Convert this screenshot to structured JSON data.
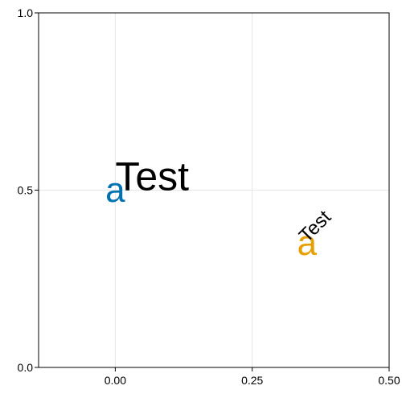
{
  "chart_data": {
    "type": "scatter",
    "title": "",
    "xlabel": "",
    "ylabel": "",
    "xlim": [
      -0.14,
      0.5
    ],
    "ylim": [
      0,
      1
    ],
    "x_ticks": [
      {
        "value": 0.0,
        "label": "0.00"
      },
      {
        "value": 0.25,
        "label": "0.25"
      },
      {
        "value": 0.5,
        "label": "0.50"
      }
    ],
    "y_ticks": [
      {
        "value": 0.0,
        "label": "0.0"
      },
      {
        "value": 0.5,
        "label": "0.5"
      },
      {
        "value": 1.0,
        "label": "1.0"
      }
    ],
    "grid": true,
    "points": [
      {
        "x": 0.0,
        "y": 0.5,
        "marker": "a",
        "color": "#0072b2"
      },
      {
        "x": 0.35,
        "y": 0.35,
        "marker": "a",
        "color": "#e69f00"
      }
    ],
    "annotations": [
      {
        "text": "Test",
        "x": 0.0,
        "y": 0.5,
        "rotation_deg": 0,
        "color": "#000000"
      },
      {
        "text": "Test",
        "x": 0.35,
        "y": 0.35,
        "rotation_deg": -45,
        "color": "#000000"
      }
    ]
  }
}
